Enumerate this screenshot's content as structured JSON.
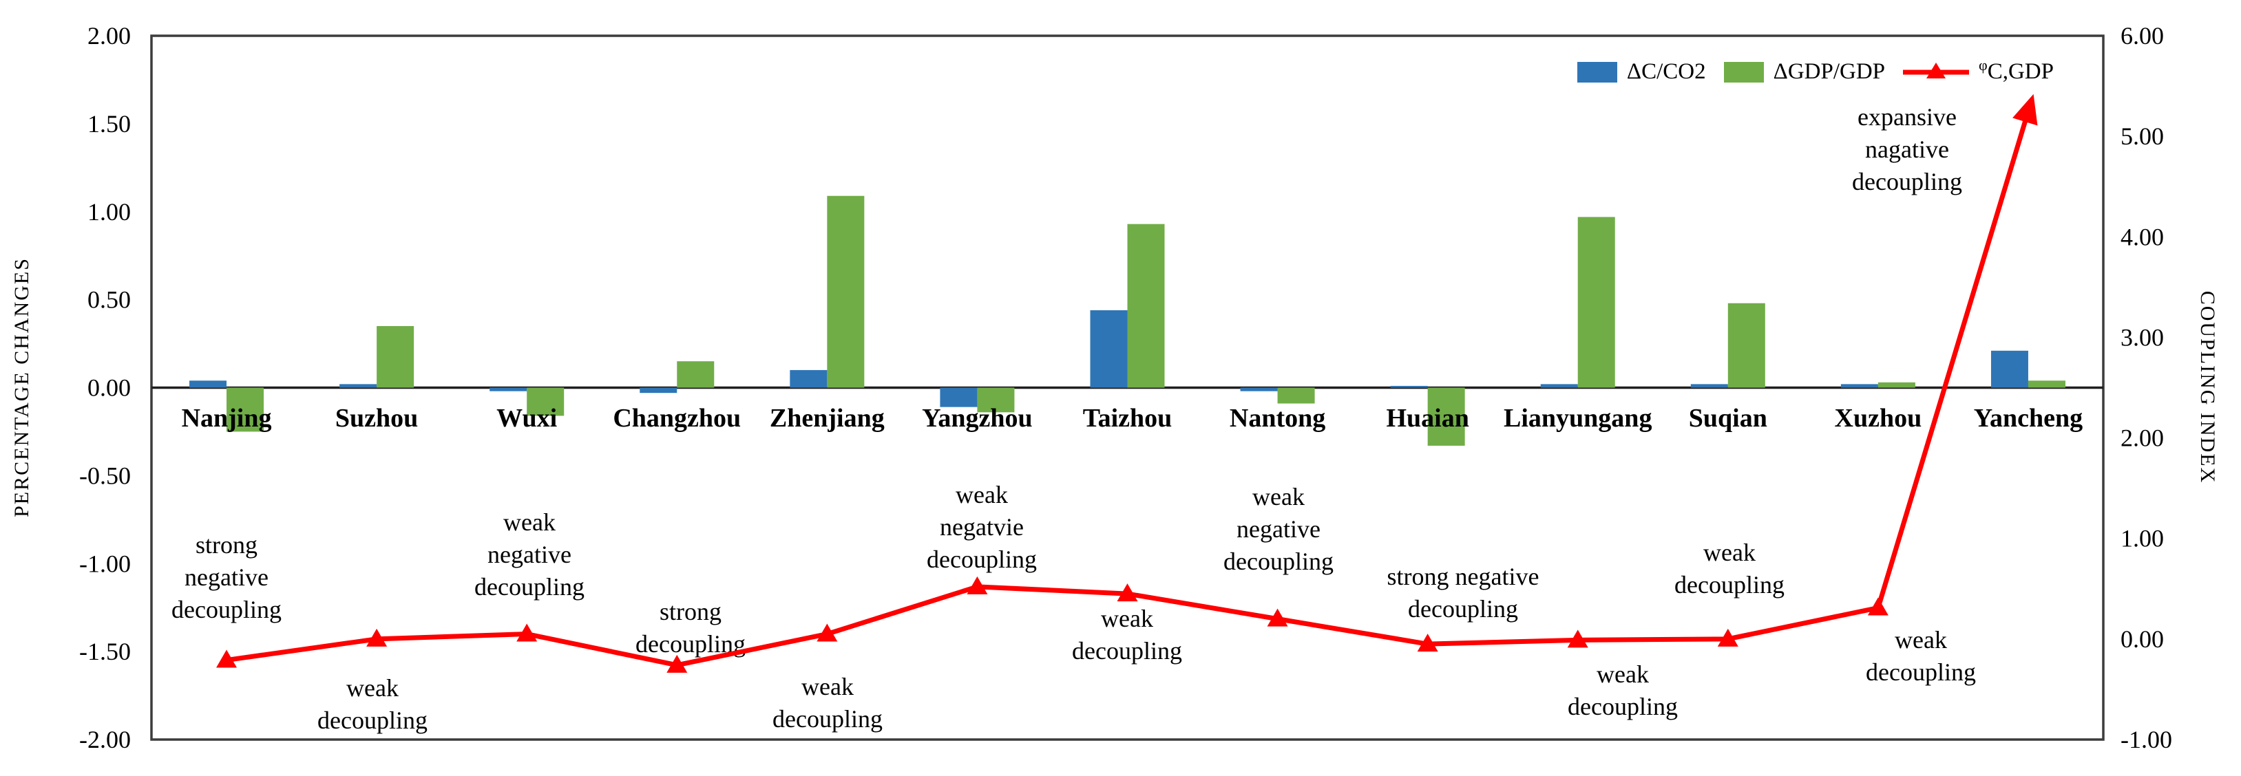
{
  "axes": {
    "left_title": "PERCENTAGE CHANGES",
    "right_title": "COUPLING INDEX"
  },
  "chart_data": {
    "type": "bar+line combo",
    "title": "",
    "categories": [
      "Nanjing",
      "Suzhou",
      "Wuxi",
      "Changzhou",
      "Zhenjiang",
      "Yangzhou",
      "Taizhou",
      "Nantong",
      "Huaian",
      "Lianyungang",
      "Suqian",
      "Xuzhou",
      "Yancheng"
    ],
    "series": [
      {
        "name": "ΔC/CO2",
        "type": "bar",
        "axis": "left",
        "color": "#2E75B6",
        "values": [
          0.04,
          0.02,
          -0.02,
          -0.03,
          0.1,
          -0.11,
          0.44,
          -0.02,
          0.01,
          0.02,
          0.02,
          0.02,
          0.21
        ]
      },
      {
        "name": "ΔGDP/GDP",
        "type": "bar",
        "axis": "left",
        "color": "#70AD47",
        "values": [
          -0.25,
          0.35,
          -0.16,
          0.15,
          1.09,
          -0.14,
          0.93,
          -0.09,
          -0.33,
          0.97,
          0.48,
          0.03,
          0.04
        ]
      },
      {
        "name": "φC,GDP",
        "label_sup": "φ",
        "label_main": "C,GDP",
        "type": "line",
        "axis": "right",
        "color": "#FF0000",
        "values": [
          -0.21,
          0.0,
          0.05,
          -0.26,
          0.05,
          0.52,
          0.45,
          0.2,
          -0.05,
          -0.01,
          0.0,
          0.31,
          5.25
        ]
      }
    ],
    "left_axis": {
      "label": "PERCENTAGE CHANGES",
      "min": -2,
      "max": 2,
      "step": 0.5,
      "tick_format": "2dp"
    },
    "right_axis": {
      "label": "COUPLING INDEX",
      "min": -1,
      "max": 6,
      "step": 1,
      "tick_format": "2dp"
    },
    "legend_position": "top-right-inside",
    "grid": false,
    "annotations": [
      {
        "x": 329,
        "top_y": 792,
        "lines": [
          "strong",
          "negative",
          "decoupling"
        ]
      },
      {
        "x": 541,
        "top_y": 1000,
        "lines": [
          "weak",
          "decoupling"
        ]
      },
      {
        "x": 769,
        "top_y": 759,
        "lines": [
          "weak",
          "negative",
          "decoupling"
        ]
      },
      {
        "x": 1003,
        "top_y": 889,
        "lines": [
          "strong",
          "decoupling"
        ]
      },
      {
        "x": 1202,
        "top_y": 998,
        "lines": [
          "weak",
          "decoupling"
        ]
      },
      {
        "x": 1426,
        "top_y": 719,
        "lines": [
          "weak",
          "negatvie",
          "decoupling"
        ]
      },
      {
        "x": 1637,
        "top_y": 899,
        "lines": [
          "weak",
          "decoupling"
        ]
      },
      {
        "x": 1857,
        "top_y": 722,
        "lines": [
          "weak",
          "negative",
          "decoupling"
        ]
      },
      {
        "x": 2125,
        "top_y": 838,
        "lines": [
          "strong negative",
          "decoupling"
        ]
      },
      {
        "x": 2357,
        "top_y": 980,
        "lines": [
          "weak",
          "decoupling"
        ]
      },
      {
        "x": 2512,
        "top_y": 803,
        "lines": [
          "weak",
          "decoupling"
        ]
      },
      {
        "x": 2790,
        "top_y": 930,
        "lines": [
          "weak",
          "decoupling"
        ]
      },
      {
        "x": 2770,
        "top_y": 170,
        "lines": [
          "expansive",
          "nagative",
          "decoupling"
        ]
      }
    ]
  }
}
